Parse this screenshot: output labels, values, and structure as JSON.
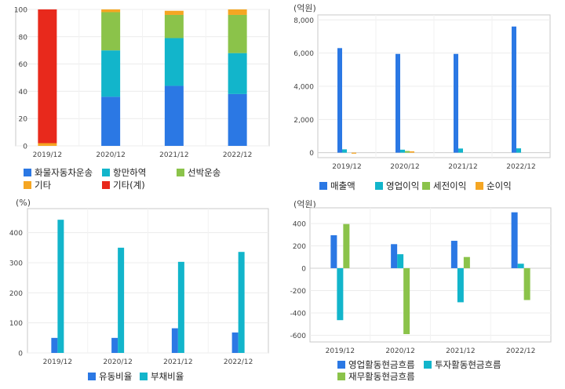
{
  "charts": [
    {
      "id": "c1",
      "unit": "",
      "chart_data": {
        "type": "bar",
        "stacked": true,
        "categories": [
          "2019/12",
          "2020/12",
          "2021/12",
          "2022/12"
        ],
        "ylim": [
          0,
          100
        ],
        "yticks": [
          0,
          20,
          40,
          60,
          80,
          100
        ],
        "series": [
          {
            "name": "화물자동차운송",
            "color": "#2b78e4",
            "values": [
              0,
              36,
              44,
              38
            ]
          },
          {
            "name": "항만하역",
            "color": "#12b5cb",
            "values": [
              0,
              34,
              35,
              30
            ]
          },
          {
            "name": "선박운송",
            "color": "#8bc34a",
            "values": [
              0,
              28,
              17,
              28
            ]
          },
          {
            "name": "기타",
            "color": "#f5a623",
            "values": [
              2,
              2,
              3,
              4
            ]
          },
          {
            "name": "기타(계)",
            "color": "#e8291c",
            "values": [
              98,
              0,
              0,
              0
            ]
          }
        ]
      }
    },
    {
      "id": "c2",
      "unit": "(억원)",
      "chart_data": {
        "type": "bar",
        "categories": [
          "2019/12",
          "2020/12",
          "2021/12",
          "2022/12"
        ],
        "ylim": [
          -300,
          8300
        ],
        "yticks": [
          0,
          2000,
          4000,
          6000,
          8000
        ],
        "yticklabels": [
          "0",
          "2,000",
          "4,000",
          "6,000",
          "8,000"
        ],
        "series": [
          {
            "name": "매출액",
            "color": "#2b78e4",
            "values": [
              6300,
              5950,
              5950,
              7600
            ]
          },
          {
            "name": "영업이익",
            "color": "#12b5cb",
            "values": [
              200,
              180,
              250,
              260
            ]
          },
          {
            "name": "세전이익",
            "color": "#8bc34a",
            "values": [
              0,
              100,
              0,
              0
            ]
          },
          {
            "name": "순이익",
            "color": "#f5a623",
            "values": [
              -60,
              80,
              0,
              0
            ]
          }
        ]
      }
    },
    {
      "id": "c3",
      "unit": "(%)",
      "chart_data": {
        "type": "bar",
        "categories": [
          "2019/12",
          "2020/12",
          "2021/12",
          "2022/12"
        ],
        "ylim": [
          0,
          480
        ],
        "yticks": [
          0,
          100,
          200,
          300,
          400
        ],
        "series": [
          {
            "name": "유동비율",
            "color": "#2b78e4",
            "values": [
              50,
              50,
              82,
              68
            ]
          },
          {
            "name": "부채비율",
            "color": "#12b5cb",
            "values": [
              443,
              350,
              303,
              336
            ]
          }
        ]
      }
    },
    {
      "id": "c4",
      "unit": "(억원)",
      "chart_data": {
        "type": "bar",
        "categories": [
          "2019/12",
          "2020/12",
          "2021/12",
          "2022/12"
        ],
        "ylim": [
          -660,
          540
        ],
        "yticks": [
          -600,
          -400,
          -200,
          0,
          200,
          400
        ],
        "series": [
          {
            "name": "영업활동현금흐름",
            "color": "#2b78e4",
            "values": [
              295,
              215,
              245,
              500
            ]
          },
          {
            "name": "투자활동현금흐름",
            "color": "#12b5cb",
            "values": [
              -465,
              125,
              -305,
              40
            ]
          },
          {
            "name": "재무활동현금흐름",
            "color": "#8bc34a",
            "values": [
              395,
              -590,
              100,
              -285
            ]
          }
        ]
      }
    }
  ]
}
